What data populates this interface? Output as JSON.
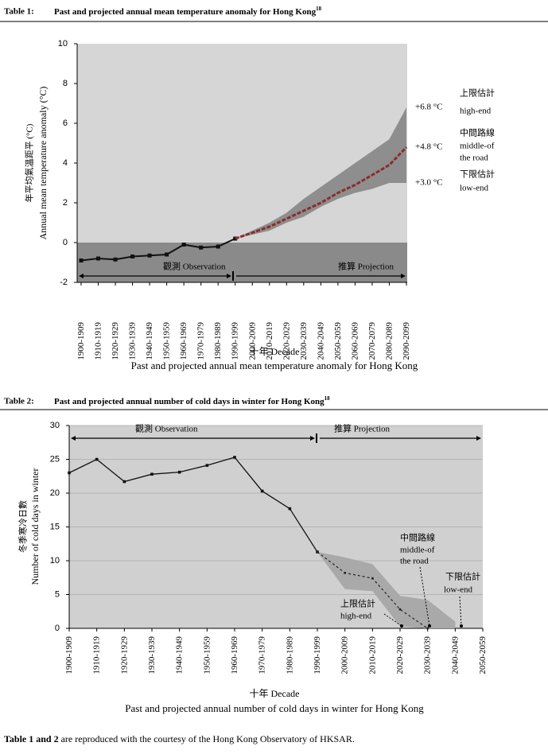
{
  "chart_data": [
    {
      "type": "line",
      "label": "Table 1:",
      "title": "Past and projected annual mean temperature anomaly for Hong Kong",
      "title_ref": "18",
      "caption": "Past and projected annual mean temperature anomaly for Hong Kong",
      "ylabel_zh": "年平均氣溫距平 (°C)",
      "ylabel": "Annual mean temperature anomaly (°C)",
      "xlabel": "十年  Decade",
      "observation_label": "觀測  Observation",
      "projection_label": "推算  Projection",
      "categories": [
        "1900-1909",
        "1910-1919",
        "1920-1929",
        "1930-1939",
        "1940-1949",
        "1950-1959",
        "1960-1969",
        "1970-1979",
        "1980-1989",
        "1990-1999",
        "2000-2009",
        "2010-2019",
        "2020-2029",
        "2030-2039",
        "2040-2049",
        "2050-2059",
        "2060-2069",
        "2070-2079",
        "2080-2089",
        "2090-2099"
      ],
      "series": [
        {
          "style": "solid",
          "color": "#111111",
          "values": [
            -0.9,
            -0.8,
            -0.85,
            -0.7,
            -0.65,
            -0.6,
            -0.1,
            -0.25,
            -0.2,
            0.2,
            null,
            null,
            null,
            null,
            null,
            null,
            null,
            null,
            null,
            null
          ]
        },
        {
          "style": "dashed",
          "color": "#8b2c2c",
          "values": [
            null,
            null,
            null,
            null,
            null,
            null,
            null,
            null,
            null,
            0.2,
            0.5,
            0.8,
            1.2,
            1.6,
            2.0,
            2.5,
            2.9,
            3.4,
            3.9,
            4.8
          ]
        },
        {
          "style": "band-high",
          "color": "#8e8e8e",
          "values": [
            null,
            null,
            null,
            null,
            null,
            null,
            null,
            null,
            null,
            0.2,
            0.6,
            1.0,
            1.5,
            2.2,
            2.8,
            3.4,
            4.0,
            4.6,
            5.2,
            6.8
          ]
        },
        {
          "style": "band-low",
          "color": "#8e8e8e",
          "values": [
            null,
            null,
            null,
            null,
            null,
            null,
            null,
            null,
            null,
            0.2,
            0.4,
            0.6,
            1.0,
            1.3,
            1.8,
            2.2,
            2.5,
            2.7,
            3.0,
            3.0
          ]
        }
      ],
      "annotations": [
        "+6.8 °C",
        "上限估計",
        "high-end",
        "+4.8 °C",
        "中間路線",
        "middle-of",
        "the road",
        "+3.0 °C",
        "下限估計",
        "low-end"
      ],
      "ylim": [
        -2,
        10
      ],
      "yticks": [
        -2,
        0,
        2,
        4,
        6,
        8,
        10
      ],
      "grid": false
    },
    {
      "type": "line",
      "label": "Table 2:",
      "title": "Past and projected annual number of cold days in winter for Hong Kong",
      "title_ref": "18",
      "caption": "Past and projected annual number of cold days in winter for Hong Kong",
      "ylabel_zh": "冬季寒冷日數",
      "ylabel": "Number of cold days in winter",
      "xlabel": "十年  Decade",
      "observation_label": "觀測  Observation",
      "projection_label": "推算  Projection",
      "categories": [
        "1900-1909",
        "1910-1919",
        "1920-1929",
        "1930-1939",
        "1940-1949",
        "1950-1959",
        "1960-1969",
        "1970-1979",
        "1980-1989",
        "1990-1999",
        "2000-2009",
        "2010-2019",
        "2020-2029",
        "2030-2039",
        "2040-2049",
        "2050-2059"
      ],
      "series": [
        {
          "style": "solid",
          "color": "#111111",
          "values": [
            23,
            25,
            21.7,
            22.8,
            23.1,
            24.1,
            25.3,
            20.3,
            17.7,
            11.3,
            null,
            null,
            null,
            null,
            null,
            null
          ]
        },
        {
          "style": "dotted",
          "color": "#222222",
          "values": [
            null,
            null,
            null,
            null,
            null,
            null,
            null,
            null,
            null,
            11.3,
            8.2,
            7.4,
            2.8,
            0,
            null,
            null
          ]
        },
        {
          "style": "band-high",
          "color": "#a9a9a9",
          "values": [
            null,
            null,
            null,
            null,
            null,
            null,
            null,
            null,
            null,
            11.3,
            10.5,
            9.5,
            4.8,
            4.2,
            1.0,
            null
          ]
        },
        {
          "style": "band-low",
          "color": "#a9a9a9",
          "values": [
            null,
            null,
            null,
            null,
            null,
            null,
            null,
            null,
            null,
            11.3,
            5.8,
            5.5,
            0.3,
            0,
            0,
            null
          ]
        }
      ],
      "annotations": [
        "中間路線",
        "middle-of",
        "the road",
        "下限估計",
        "low-end",
        "上限估計",
        "high-end"
      ],
      "ylim": [
        0,
        30
      ],
      "yticks": [
        0,
        5,
        10,
        15,
        20,
        25,
        30
      ],
      "grid": true
    }
  ],
  "footnote": {
    "bold": "Table 1 and 2",
    "text": " are reproduced with the courtesy of the Hong Kong Observatory of HKSAR."
  }
}
